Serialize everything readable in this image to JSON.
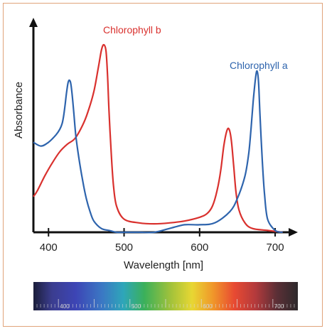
{
  "chart_data": {
    "type": "line",
    "xlabel": "Wavelength [nm]",
    "ylabel": "Absorbance",
    "xlim": [
      380,
      715
    ],
    "ylim": [
      0,
      1
    ],
    "x_ticks": [
      400,
      500,
      600,
      700
    ],
    "grid": false,
    "series": [
      {
        "name": "Chlorophyll b",
        "color": "#d9312e",
        "x": [
          380,
          385,
          395,
          405,
          415,
          425,
          435,
          445,
          452,
          460,
          466,
          470,
          473,
          476,
          478,
          480,
          483,
          486,
          490,
          500,
          520,
          540,
          560,
          580,
          600,
          610,
          617,
          623,
          628,
          632,
          636,
          639,
          642,
          645,
          648,
          652,
          660,
          670,
          690,
          710
        ],
        "values": [
          0.19,
          0.22,
          0.3,
          0.37,
          0.43,
          0.47,
          0.5,
          0.57,
          0.64,
          0.75,
          0.88,
          0.97,
          1.0,
          0.97,
          0.85,
          0.65,
          0.42,
          0.25,
          0.14,
          0.07,
          0.05,
          0.045,
          0.05,
          0.06,
          0.08,
          0.1,
          0.14,
          0.22,
          0.33,
          0.46,
          0.54,
          0.55,
          0.49,
          0.36,
          0.22,
          0.12,
          0.05,
          0.02,
          0.01,
          0.0
        ]
      },
      {
        "name": "Chlorophyll a",
        "color": "#2e64ad",
        "x": [
          380,
          390,
          400,
          410,
          415,
          418,
          420,
          422,
          424,
          426,
          428,
          430,
          433,
          436,
          440,
          445,
          450,
          455,
          460,
          470,
          480,
          490,
          500,
          520,
          540,
          560,
          580,
          600,
          620,
          640,
          650,
          660,
          665,
          668,
          671,
          674,
          676,
          678,
          680,
          683,
          686,
          690,
          700,
          710
        ],
        "values": [
          0.48,
          0.46,
          0.48,
          0.52,
          0.55,
          0.58,
          0.62,
          0.68,
          0.75,
          0.8,
          0.81,
          0.78,
          0.66,
          0.52,
          0.4,
          0.28,
          0.18,
          0.11,
          0.06,
          0.02,
          0.01,
          0.0,
          0.0,
          0.0,
          0.0,
          0.02,
          0.04,
          0.04,
          0.05,
          0.11,
          0.18,
          0.3,
          0.42,
          0.55,
          0.7,
          0.82,
          0.86,
          0.8,
          0.62,
          0.38,
          0.2,
          0.07,
          0.01,
          0.0
        ]
      }
    ]
  },
  "spectrum_bar": {
    "ticks": [
      400,
      500,
      600,
      700
    ],
    "xlim": [
      365,
      735
    ]
  }
}
